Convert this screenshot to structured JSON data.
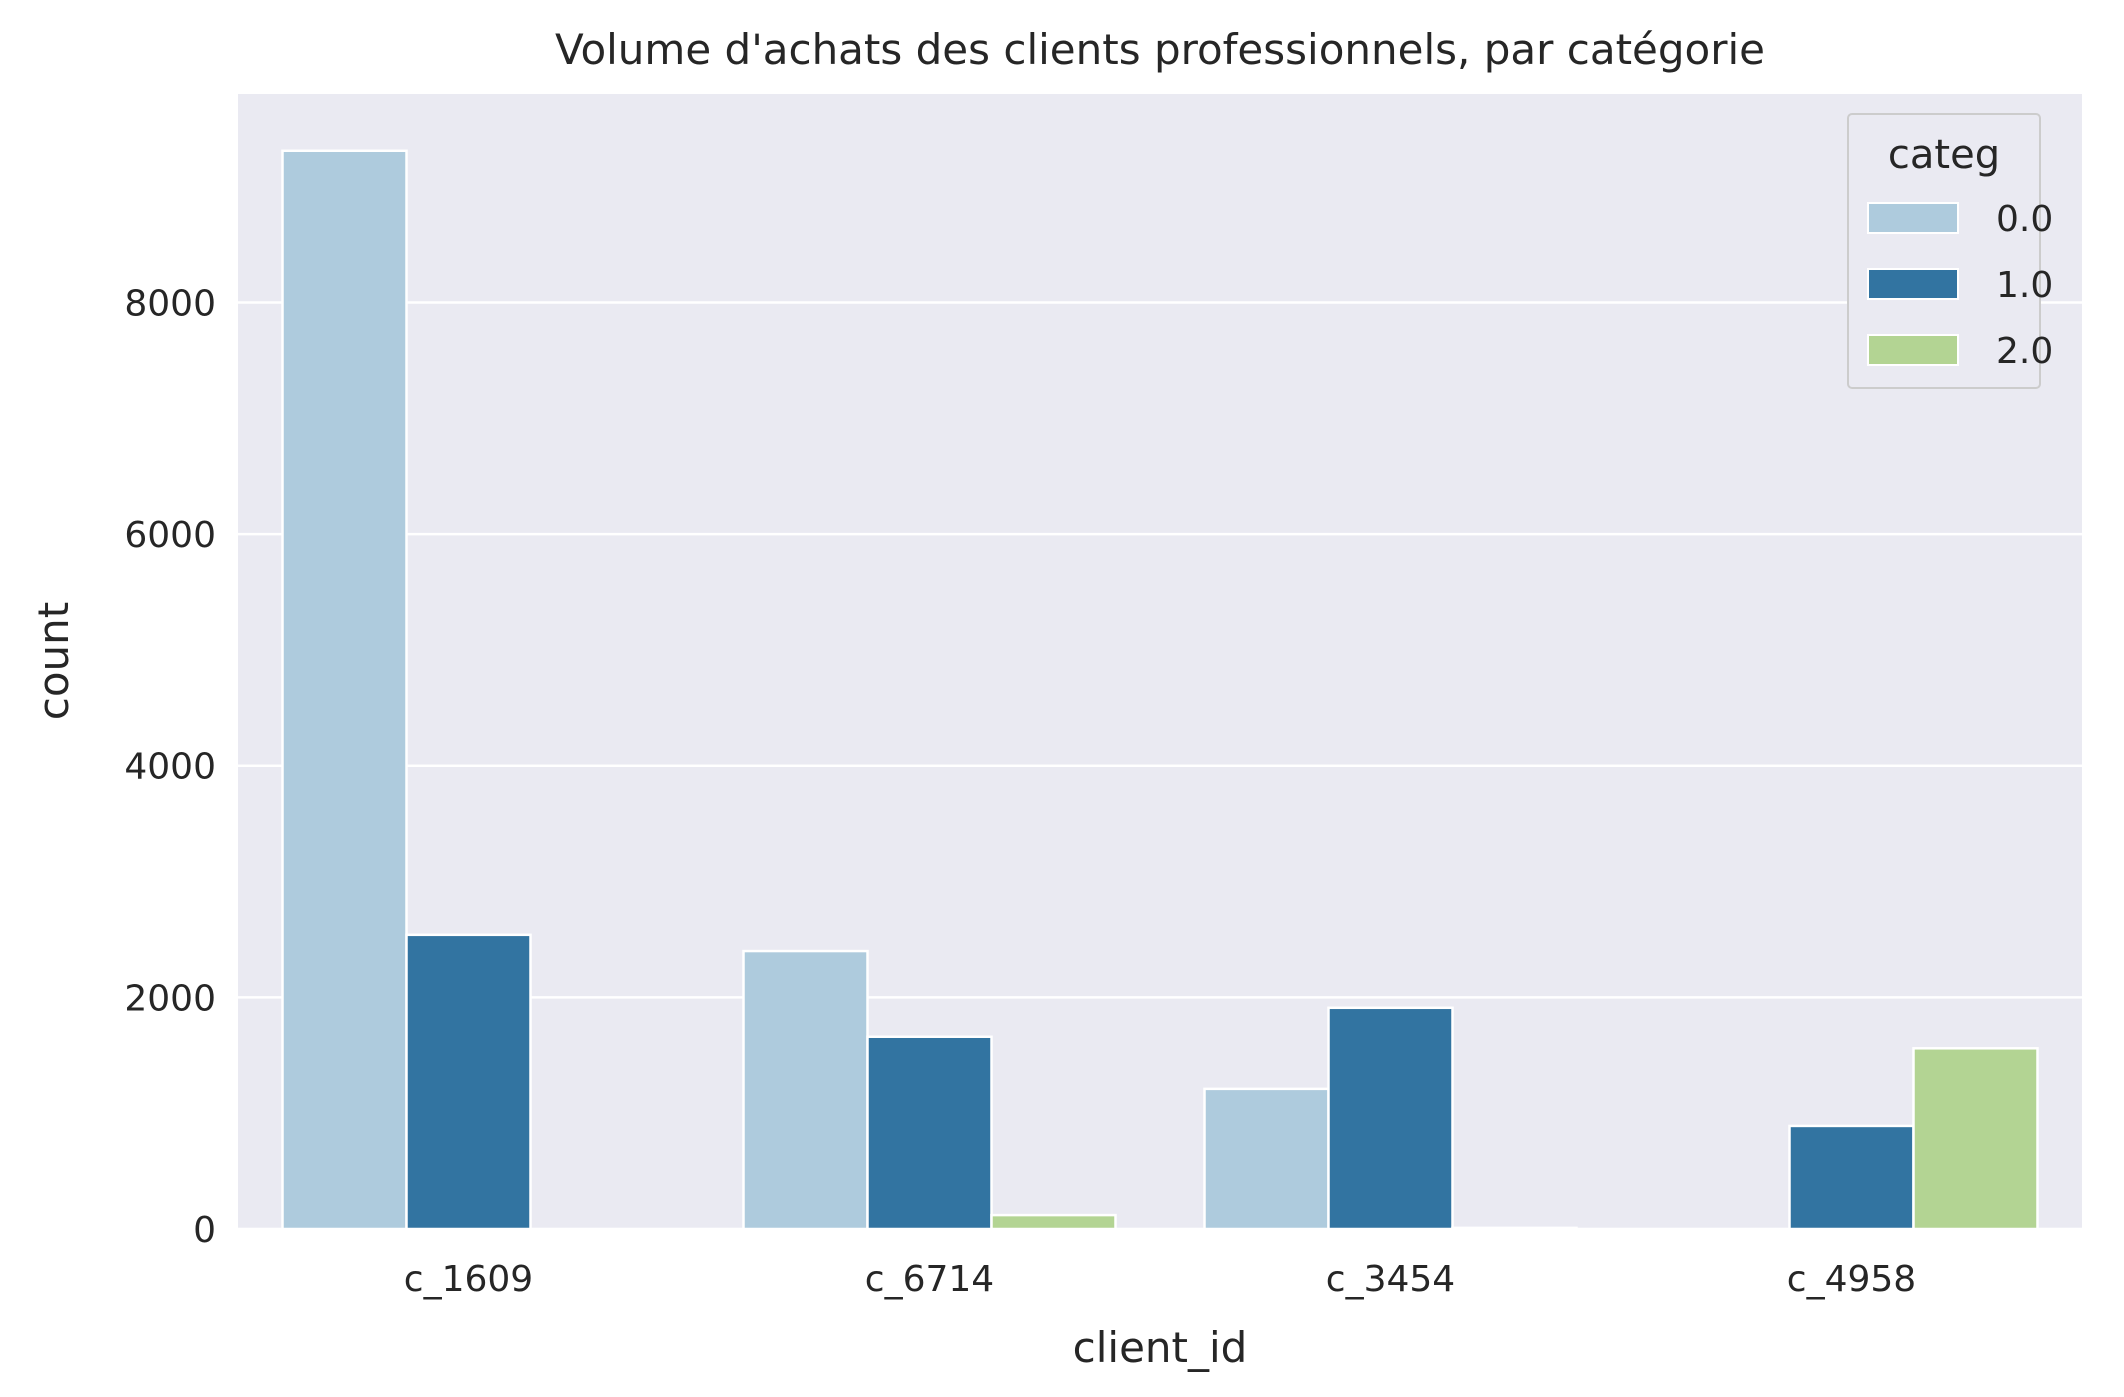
{
  "chart_data": {
    "type": "bar",
    "title": "Volume d'achats des clients professionnels, par catégorie",
    "xlabel": "client_id",
    "ylabel": "count",
    "categories": [
      "c_1609",
      "c_6714",
      "c_3454",
      "c_4958"
    ],
    "series": [
      {
        "name": "0.0",
        "color": "#aecbdd",
        "values": [
          9310,
          2400,
          1210,
          0
        ]
      },
      {
        "name": "1.0",
        "color": "#3274a1",
        "values": [
          2540,
          1660,
          1910,
          890
        ]
      },
      {
        "name": "2.0",
        "color": "#b3d493",
        "values": [
          0,
          120,
          10,
          1560
        ]
      }
    ],
    "ylim": [
      0,
      9800
    ],
    "yticks": [
      0,
      2000,
      4000,
      6000,
      8000
    ],
    "legend": {
      "title": "categ",
      "placement": "top-right"
    },
    "grid": true,
    "style": {
      "plot_background": "#eaeaf2",
      "grid_color": "#ffffff"
    }
  }
}
